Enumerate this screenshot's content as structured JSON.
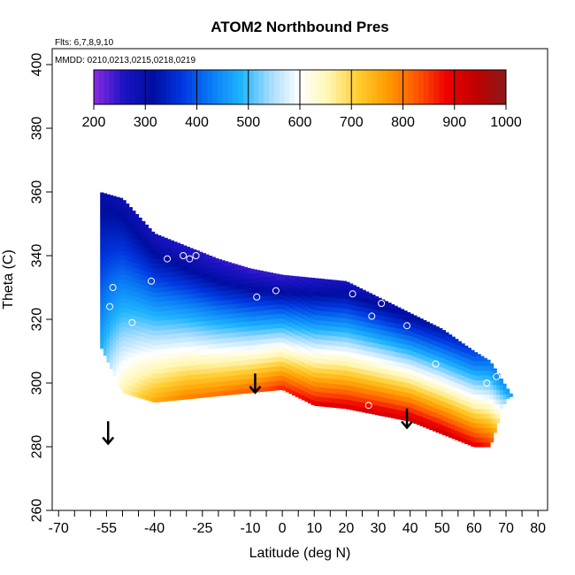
{
  "chart_data": {
    "type": "heatmap",
    "title": "ATOM2 Northbound Pres",
    "subtitle_flights": "Flts: 6,7,8,9,10",
    "subtitle_dates": "MMDD: 0210,0213,0215,0218,0219",
    "xlabel": "Latitude (deg N)",
    "ylabel": "Theta (C)",
    "xlim": [
      -72,
      83
    ],
    "ylim": [
      260,
      405
    ],
    "xticks": [
      -70,
      -55,
      -40,
      -25,
      -10,
      0,
      10,
      20,
      30,
      40,
      50,
      60,
      70,
      80
    ],
    "xtick_labels": [
      "-70",
      "-55",
      "-40",
      "-25",
      "-10",
      "0",
      "10",
      "20",
      "30",
      "40",
      "50",
      "60",
      "70",
      "80"
    ],
    "xminor": [
      -65,
      -60,
      -50,
      -45,
      -35,
      -30,
      -20,
      -15,
      -5,
      5,
      15,
      25,
      35,
      45,
      55,
      65,
      75
    ],
    "yticks": [
      260,
      280,
      300,
      320,
      340,
      360,
      380,
      400
    ],
    "ytick_labels": [
      "260",
      "280",
      "300",
      "320",
      "340",
      "360",
      "380",
      "400"
    ],
    "colorbar": {
      "min": 200,
      "max": 1000,
      "ticks": [
        200,
        300,
        400,
        500,
        600,
        700,
        800,
        900,
        1000
      ],
      "tick_labels": [
        "200",
        "300",
        "400",
        "500",
        "600",
        "700",
        "800",
        "900",
        "1000"
      ],
      "palette": [
        "#8a2be2",
        "#1c14c4",
        "#000da0",
        "#0037e0",
        "#0a7cf5",
        "#1fb4ff",
        "#a6dcff",
        "#ffffff",
        "#fff6b0",
        "#ffcc2e",
        "#ff9a00",
        "#ff5500",
        "#ee0000",
        "#bf0000",
        "#8b1a1a"
      ]
    },
    "field": {
      "latitudes": [
        -57,
        -50,
        -40,
        -30,
        -20,
        -10,
        0,
        10,
        20,
        30,
        40,
        50,
        60,
        65,
        70,
        72
      ],
      "theta_top": [
        360,
        358,
        347,
        343,
        339,
        336,
        334,
        333,
        332,
        327,
        322,
        317,
        310,
        307,
        299,
        296
      ],
      "theta_bottom": [
        312,
        297,
        294,
        295,
        296,
        297,
        298,
        293,
        292,
        290,
        288,
        284,
        280,
        280,
        295,
        296
      ],
      "pressure_at_top": [
        300,
        290,
        270,
        255,
        245,
        240,
        240,
        255,
        270,
        285,
        300,
        330,
        380,
        420,
        450,
        460
      ],
      "pressure_at_bottom": [
        470,
        660,
        760,
        800,
        810,
        830,
        870,
        905,
        915,
        925,
        930,
        930,
        910,
        870,
        520,
        470
      ]
    },
    "markers": {
      "circles": [
        {
          "lat": -57.5,
          "theta": 308
        },
        {
          "lat": -53,
          "theta": 330
        },
        {
          "lat": -54,
          "theta": 324
        },
        {
          "lat": -47,
          "theta": 319
        },
        {
          "lat": -41,
          "theta": 332
        },
        {
          "lat": -36,
          "theta": 339
        },
        {
          "lat": -31,
          "theta": 340
        },
        {
          "lat": -29,
          "theta": 339
        },
        {
          "lat": -27,
          "theta": 340
        },
        {
          "lat": -24,
          "theta": 310
        },
        {
          "lat": -19,
          "theta": 345
        },
        {
          "lat": -13,
          "theta": 348
        },
        {
          "lat": -8,
          "theta": 327
        },
        {
          "lat": -2,
          "theta": 329
        },
        {
          "lat": 4,
          "theta": 336
        },
        {
          "lat": 9,
          "theta": 335
        },
        {
          "lat": 19,
          "theta": 341
        },
        {
          "lat": 22,
          "theta": 328
        },
        {
          "lat": 28,
          "theta": 321
        },
        {
          "lat": 31,
          "theta": 325
        },
        {
          "lat": 34,
          "theta": 339
        },
        {
          "lat": 27,
          "theta": 293
        },
        {
          "lat": 39,
          "theta": 318
        },
        {
          "lat": 48,
          "theta": 320
        },
        {
          "lat": 49,
          "theta": 323
        },
        {
          "lat": 48,
          "theta": 306
        },
        {
          "lat": 58,
          "theta": 316
        },
        {
          "lat": 65,
          "theta": 310
        },
        {
          "lat": 67,
          "theta": 302
        },
        {
          "lat": 64,
          "theta": 300
        }
      ],
      "arrows": [
        {
          "lat": -54.5,
          "theta_tail": 288,
          "theta_head": 281
        },
        {
          "lat": -8.5,
          "theta_tail": 303,
          "theta_head": 297
        },
        {
          "lat": 39,
          "theta_tail": 292,
          "theta_head": 286
        }
      ]
    }
  }
}
